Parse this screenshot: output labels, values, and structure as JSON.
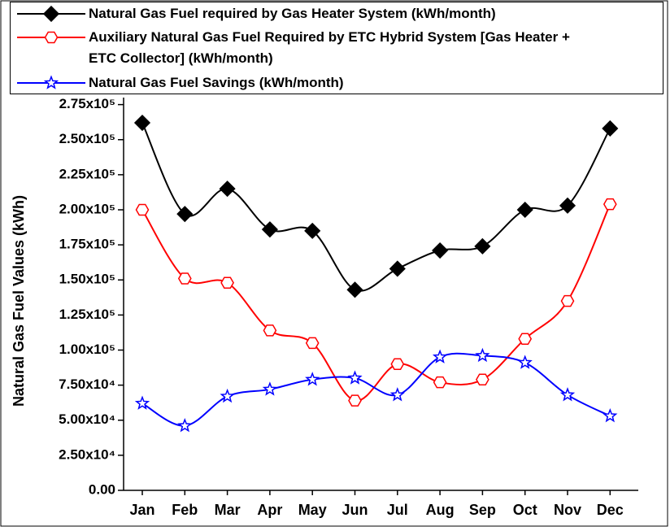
{
  "chart_data": {
    "type": "line",
    "ylabel": "Natural Gas Fuel Values (kWh)",
    "categories": [
      "Jan",
      "Feb",
      "Mar",
      "Apr",
      "May",
      "Jun",
      "Jul",
      "Aug",
      "Sep",
      "Oct",
      "Nov",
      "Dec"
    ],
    "series": [
      {
        "name": "Natural Gas Fuel required by Gas Heater System (kWh/month)",
        "color": "#000000",
        "marker": "diamond",
        "values": [
          262000,
          197000,
          215000,
          186000,
          185000,
          143000,
          158000,
          171000,
          174000,
          200000,
          203000,
          258000
        ]
      },
      {
        "name": "Auxiliary Natural Gas Fuel Required by ETC Hybrid System [Gas Heater + ETC Collector] (kWh/month)",
        "color": "#ff0000",
        "marker": "hexagon",
        "values": [
          200000,
          151000,
          148000,
          114000,
          105000,
          64000,
          90000,
          77000,
          79000,
          108000,
          135000,
          204000
        ]
      },
      {
        "name": "Natural Gas Fuel Savings (kWh/month)",
        "color": "#0000ff",
        "marker": "star",
        "values": [
          62000,
          46000,
          67000,
          72000,
          79000,
          80000,
          68000,
          95000,
          96000,
          91000,
          68000,
          53000
        ]
      }
    ],
    "ylim": [
      0,
      280000
    ],
    "yticks": [
      {
        "value": 0,
        "label": "0.00"
      },
      {
        "value": 25000,
        "label": "2.50x10⁴"
      },
      {
        "value": 50000,
        "label": "5.00x10⁴"
      },
      {
        "value": 75000,
        "label": "7.50x10⁴"
      },
      {
        "value": 100000,
        "label": "1.00x10⁵"
      },
      {
        "value": 125000,
        "label": "1.25x10⁵"
      },
      {
        "value": 150000,
        "label": "1.50x10⁵"
      },
      {
        "value": 175000,
        "label": "1.75x10⁵"
      },
      {
        "value": 200000,
        "label": "2.00x10⁵"
      },
      {
        "value": 225000,
        "label": "2.25x10⁵"
      },
      {
        "value": 250000,
        "label": "2.50x10⁵"
      },
      {
        "value": 275000,
        "label": "2.75x10⁵"
      }
    ],
    "legend": "top"
  }
}
